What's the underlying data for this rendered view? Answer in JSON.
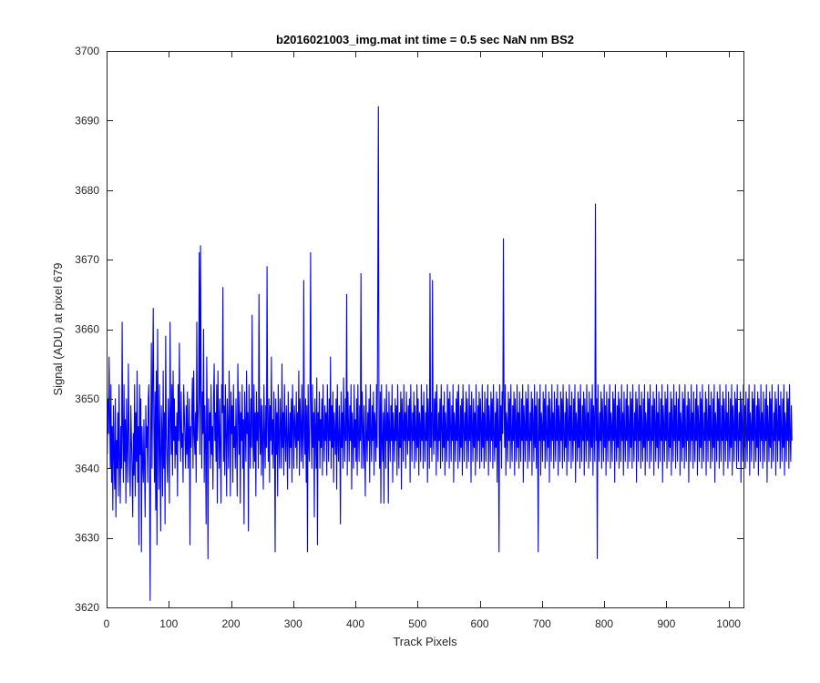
{
  "chart_data": {
    "type": "line",
    "title": "b2016021003_img.mat int time = 0.5 sec  NaN nm BS2",
    "xlabel": "Track Pixels",
    "ylabel": "Signal (ADU) at pixel 679",
    "xlim": [
      0,
      1024
    ],
    "ylim": [
      3620,
      3700
    ],
    "xticks": [
      0,
      100,
      200,
      300,
      400,
      500,
      600,
      700,
      800,
      900,
      1000
    ],
    "yticks": [
      3620,
      3630,
      3640,
      3650,
      3660,
      3670,
      3680,
      3690,
      3700
    ],
    "grid": false,
    "series": [
      {
        "color": "#0000ff",
        "x_start": 1,
        "x_step": 1,
        "values": [
          3642,
          3650,
          3645,
          3656,
          3648,
          3640,
          3652,
          3638,
          3646,
          3634,
          3649,
          3642,
          3637,
          3650,
          3633,
          3644,
          3640,
          3648,
          3636,
          3652,
          3642,
          3635,
          3646,
          3640,
          3661,
          3645,
          3638,
          3652,
          3641,
          3647,
          3635,
          3650,
          3643,
          3638,
          3655,
          3646,
          3640,
          3636,
          3649,
          3644,
          3640,
          3633,
          3645,
          3639,
          3652,
          3636,
          3648,
          3641,
          3654,
          3638,
          3646,
          3629,
          3652,
          3642,
          3650,
          3628,
          3646,
          3641,
          3638,
          3647,
          3640,
          3633,
          3649,
          3643,
          3646,
          3638,
          3650,
          3652,
          3640,
          3621,
          3645,
          3658,
          3640,
          3652,
          3663,
          3646,
          3638,
          3651,
          3634,
          3654,
          3629,
          3660,
          3646,
          3637,
          3652,
          3642,
          3631,
          3649,
          3645,
          3636,
          3654,
          3640,
          3648,
          3632,
          3659,
          3645,
          3641,
          3638,
          3650,
          3646,
          3635,
          3661,
          3648,
          3642,
          3652,
          3639,
          3654,
          3644,
          3650,
          3640,
          3646,
          3642,
          3648,
          3636,
          3652,
          3644,
          3658,
          3646,
          3641,
          3651,
          3643,
          3645,
          3638,
          3652,
          3648,
          3644,
          3640,
          3649,
          3642,
          3651,
          3640,
          3645,
          3650,
          3629,
          3646,
          3643,
          3648,
          3653,
          3640,
          3654,
          3645,
          3642,
          3648,
          3638,
          3661,
          3644,
          3647,
          3650,
          3671,
          3642,
          3672,
          3652,
          3640,
          3651,
          3645,
          3660,
          3638,
          3649,
          3644,
          3632,
          3656,
          3646,
          3627,
          3650,
          3644,
          3648,
          3640,
          3652,
          3642,
          3646,
          3637,
          3650,
          3655,
          3644,
          3648,
          3641,
          3652,
          3635,
          3654,
          3646,
          3640,
          3650,
          3643,
          3635,
          3652,
          3648,
          3666,
          3641,
          3649,
          3639,
          3652,
          3645,
          3636,
          3650,
          3646,
          3640,
          3654,
          3647,
          3636,
          3651,
          3645,
          3649,
          3638,
          3652,
          3643,
          3646,
          3640,
          3650,
          3644,
          3636,
          3655,
          3648,
          3642,
          3651,
          3635,
          3648,
          3644,
          3652,
          3640,
          3647,
          3632,
          3651,
          3646,
          3641,
          3654,
          3645,
          3648,
          3631,
          3652,
          3646,
          3640,
          3650,
          3643,
          3662,
          3645,
          3640,
          3652,
          3641,
          3648,
          3636,
          3651,
          3644,
          3648,
          3640,
          3665,
          3646,
          3642,
          3650,
          3639,
          3649,
          3644,
          3637,
          3652,
          3645,
          3640,
          3649,
          3643,
          3669,
          3646,
          3641,
          3650,
          3638,
          3649,
          3644,
          3656,
          3642,
          3647,
          3640,
          3651,
          3645,
          3628,
          3650,
          3642,
          3648,
          3636,
          3652,
          3644,
          3640,
          3650,
          3646,
          3640,
          3655,
          3643,
          3648,
          3639,
          3652,
          3645,
          3641,
          3649,
          3644,
          3637,
          3651,
          3645,
          3640,
          3648,
          3643,
          3650,
          3638,
          3652,
          3647,
          3640,
          3649,
          3645,
          3643,
          3651,
          3640,
          3648,
          3644,
          3654,
          3639,
          3650,
          3646,
          3641,
          3652,
          3644,
          3640,
          3667,
          3645,
          3642,
          3650,
          3638,
          3649,
          3628,
          3652,
          3644,
          3641,
          3650,
          3671,
          3646,
          3640,
          3652,
          3643,
          3648,
          3633,
          3650,
          3645,
          3640,
          3653,
          3629,
          3648,
          3644,
          3651,
          3640,
          3647,
          3643,
          3650,
          3639,
          3652,
          3645,
          3641,
          3649,
          3644,
          3648,
          3639,
          3652,
          3646,
          3641,
          3650,
          3644,
          3656,
          3640,
          3649,
          3643,
          3651,
          3638,
          3648,
          3645,
          3642,
          3650,
          3637,
          3652,
          3644,
          3641,
          3649,
          3645,
          3632,
          3651,
          3643,
          3648,
          3640,
          3653,
          3645,
          3641,
          3650,
          3644,
          3665,
          3639,
          3651,
          3646,
          3641,
          3649,
          3644,
          3652,
          3637,
          3648,
          3645,
          3640,
          3652,
          3643,
          3647,
          3641,
          3650,
          3639,
          3652,
          3645,
          3641,
          3649,
          3644,
          3668,
          3640,
          3651,
          3646,
          3640,
          3649,
          3643,
          3636,
          3652,
          3645,
          3641,
          3648,
          3644,
          3650,
          3638,
          3652,
          3645,
          3641,
          3649,
          3644,
          3651,
          3639,
          3648,
          3646,
          3641,
          3652,
          3643,
          3665,
          3692,
          3645,
          3640,
          3651,
          3635,
          3652,
          3644,
          3641,
          3648,
          3635,
          3650,
          3646,
          3640,
          3652,
          3644,
          3648,
          3635,
          3651,
          3645,
          3641,
          3649,
          3644,
          3652,
          3638,
          3648,
          3645,
          3641,
          3650,
          3644,
          3649,
          3639,
          3652,
          3645,
          3640,
          3648,
          3643,
          3651,
          3637,
          3650,
          3646,
          3641,
          3652,
          3644,
          3648,
          3640,
          3651,
          3645,
          3642,
          3649,
          3644,
          3650,
          3638,
          3652,
          3646,
          3641,
          3648,
          3644,
          3651,
          3640,
          3649,
          3645,
          3641,
          3652,
          3643,
          3650,
          3639,
          3648,
          3646,
          3641,
          3652,
          3644,
          3649,
          3640,
          3651,
          3645,
          3641,
          3648,
          3644,
          3652,
          3638,
          3650,
          3646,
          3640,
          3668,
          3643,
          3648,
          3641,
          3667,
          3645,
          3642,
          3650,
          3644,
          3651,
          3639,
          3652,
          3645,
          3641,
          3648,
          3644,
          3650,
          3640,
          3652,
          3646,
          3641,
          3649,
          3643,
          3651,
          3639,
          3648,
          3645,
          3641,
          3652,
          3644,
          3650,
          3640,
          3651,
          3646,
          3641,
          3649,
          3644,
          3652,
          3638,
          3648,
          3646,
          3641,
          3650,
          3644,
          3651,
          3640,
          3652,
          3645,
          3641,
          3649,
          3643,
          3650,
          3639,
          3652,
          3646,
          3641,
          3648,
          3644,
          3651,
          3640,
          3650,
          3645,
          3641,
          3652,
          3644,
          3649,
          3638,
          3651,
          3646,
          3641,
          3650,
          3643,
          3648,
          3639,
          3652,
          3645,
          3641,
          3649,
          3644,
          3651,
          3640,
          3650,
          3646,
          3641,
          3652,
          3643,
          3648,
          3640,
          3651,
          3645,
          3641,
          3650,
          3644,
          3652,
          3639,
          3649,
          3646,
          3641,
          3651,
          3644,
          3650,
          3640,
          3652,
          3645,
          3641,
          3648,
          3643,
          3651,
          3638,
          3650,
          3646,
          3628,
          3652,
          3644,
          3649,
          3640,
          3651,
          3645,
          3673,
          3650,
          3643,
          3652,
          3639,
          3648,
          3646,
          3641,
          3651,
          3644,
          3650,
          3640,
          3652,
          3645,
          3641,
          3649,
          3644,
          3651,
          3639,
          3650,
          3646,
          3641,
          3652,
          3643,
          3648,
          3640,
          3651,
          3645,
          3641,
          3650,
          3644,
          3652,
          3638,
          3649,
          3646,
          3641,
          3651,
          3644,
          3650,
          3640,
          3652,
          3645,
          3641,
          3648,
          3644,
          3651,
          3639,
          3650,
          3646,
          3641,
          3652,
          3643,
          3649,
          3640,
          3651,
          3645,
          3628,
          3650,
          3644,
          3652,
          3639,
          3648,
          3646,
          3641,
          3651,
          3644,
          3650,
          3640,
          3652,
          3645,
          3641,
          3649,
          3643,
          3651,
          3638,
          3650,
          3646,
          3641,
          3652,
          3644,
          3648,
          3640,
          3651,
          3645,
          3641,
          3650,
          3644,
          3652,
          3639,
          3649,
          3646,
          3641,
          3651,
          3644,
          3650,
          3640,
          3652,
          3645,
          3641,
          3648,
          3643,
          3651,
          3639,
          3650,
          3646,
          3641,
          3652,
          3644,
          3649,
          3640,
          3651,
          3645,
          3641,
          3650,
          3644,
          3652,
          3638,
          3648,
          3646,
          3641,
          3651,
          3643,
          3650,
          3640,
          3652,
          3645,
          3641,
          3649,
          3644,
          3651,
          3639,
          3650,
          3646,
          3641,
          3652,
          3644,
          3648,
          3640,
          3651,
          3645,
          3641,
          3650,
          3643,
          3652,
          3639,
          3649,
          3646,
          3641,
          3678,
          3644,
          3650,
          3627,
          3652,
          3645,
          3641,
          3648,
          3644,
          3651,
          3640,
          3650,
          3646,
          3641,
          3652,
          3643,
          3649,
          3639,
          3651,
          3645,
          3641,
          3650,
          3644,
          3652,
          3640,
          3648,
          3646,
          3641,
          3651,
          3644,
          3650,
          3638,
          3652,
          3645,
          3641,
          3649,
          3643,
          3651,
          3640,
          3650,
          3646,
          3641,
          3652,
          3644,
          3648,
          3639,
          3651,
          3645,
          3641,
          3650,
          3644,
          3652,
          3640,
          3649,
          3646,
          3641,
          3651,
          3643,
          3650,
          3640,
          3652,
          3645,
          3641,
          3648,
          3644,
          3651,
          3638,
          3650,
          3646,
          3641,
          3652,
          3644,
          3649,
          3640,
          3651,
          3645,
          3641,
          3650,
          3643,
          3652,
          3639,
          3648,
          3646,
          3641,
          3651,
          3644,
          3650,
          3640,
          3652,
          3645,
          3641,
          3649,
          3644,
          3651,
          3639,
          3650,
          3646,
          3641,
          3652,
          3643,
          3648,
          3640,
          3651,
          3645,
          3641,
          3650,
          3644,
          3652,
          3638,
          3649,
          3646,
          3641,
          3651,
          3644,
          3650,
          3640,
          3652,
          3645,
          3641,
          3648,
          3643,
          3651,
          3639,
          3650,
          3646,
          3641,
          3652,
          3644,
          3649,
          3640,
          3651,
          3645,
          3641,
          3650,
          3644,
          3652,
          3639,
          3648,
          3646,
          3641,
          3651,
          3643,
          3650,
          3640,
          3652,
          3645,
          3641,
          3649,
          3644,
          3651,
          3638,
          3650,
          3646,
          3641,
          3652,
          3644,
          3648,
          3640,
          3651,
          3645,
          3641,
          3650,
          3644,
          3652,
          3639,
          3649,
          3646,
          3641,
          3651,
          3643,
          3650,
          3640,
          3652,
          3645,
          3641,
          3648,
          3644,
          3651,
          3639,
          3650,
          3646,
          3641,
          3652,
          3644,
          3649,
          3640,
          3651,
          3645,
          3641,
          3650,
          3643,
          3652,
          3638,
          3648,
          3646,
          3641,
          3651,
          3644,
          3650,
          3640,
          3652,
          3645,
          3641,
          3649,
          3644,
          3651,
          3639,
          3650,
          3646,
          3641,
          3652,
          3644,
          3648,
          3640,
          3651,
          3645,
          3641,
          3650,
          3643,
          3652,
          3639,
          3649,
          3646,
          3641,
          3651,
          3644,
          3650,
          3640,
          3652,
          3645,
          3641,
          3648,
          3644,
          3651,
          3638,
          3650,
          3646,
          3641,
          3652,
          3643,
          3649,
          3640,
          3651,
          3645,
          3641,
          3650,
          3644,
          3652,
          3639,
          3648,
          3646,
          3641,
          3651,
          3644,
          3650,
          3640,
          3652,
          3645,
          3641,
          3649,
          3643,
          3651,
          3639,
          3650,
          3646,
          3641,
          3652,
          3644,
          3648,
          3640,
          3651,
          3645,
          3641,
          3650,
          3644,
          3652,
          3638,
          3649,
          3646,
          3641,
          3651,
          3643,
          3650,
          3640,
          3652,
          3645,
          3641,
          3648,
          3644,
          3651,
          3639,
          3650,
          3646,
          3641,
          3652,
          3644,
          3649,
          3640,
          3651,
          3645,
          3641,
          3650,
          3643,
          3652,
          3639,
          3648,
          3646,
          3641,
          3651,
          3644,
          3650,
          3640,
          3652,
          3645,
          3641,
          3649,
          3644
        ]
      }
    ]
  }
}
